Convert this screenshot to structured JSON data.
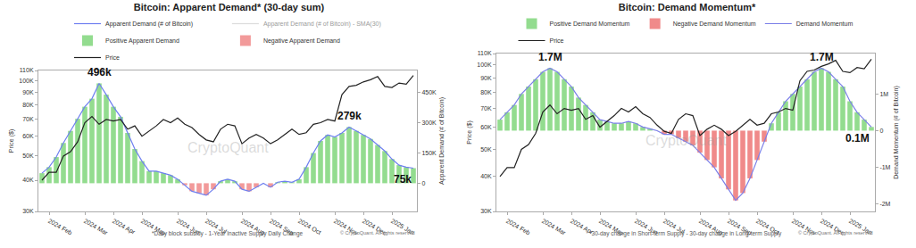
{
  "chart_data": [
    {
      "type": "bar",
      "title": "Bitcoin: Apparent Demand* (30-day sum)",
      "y_label": "Price ($)",
      "y2_label": "Apparent Demand (# of Bitcoin)",
      "footnote": "*Daily block subsidy - 1-Year Inactive Supply Daily Change",
      "credit": "© CryptoQuant. All rights reserved",
      "watermark": "CryptoQuant",
      "legend": "top",
      "grid": false,
      "log": "y",
      "categories": [
        null,
        "2024 Feb",
        null,
        null,
        null,
        null,
        "2024 Mar",
        null,
        null,
        null,
        "2024 Apr",
        null,
        null,
        null,
        "2024 May",
        null,
        null,
        null,
        null,
        "2024 Jun",
        null,
        null,
        null,
        "2024 Jul",
        null,
        null,
        null,
        null,
        "2024 Aug",
        null,
        null,
        null,
        "2024 Sep",
        null,
        null,
        null,
        "2024 Oct",
        null,
        null,
        null,
        null,
        "2024 Nov",
        null,
        null,
        null,
        "2024 Dec",
        null,
        null,
        null,
        "2025 Jan",
        null,
        null,
        null
      ],
      "ylim": [
        30000,
        110000
      ],
      "yticks": [
        {
          "value": 30000,
          "label": "30K"
        },
        {
          "value": 40000,
          "label": "40K"
        },
        {
          "value": 50000,
          "label": "50K"
        },
        {
          "value": 60000,
          "label": "60K"
        },
        {
          "value": 70000,
          "label": "70K"
        },
        {
          "value": 80000,
          "label": "80K"
        },
        {
          "value": 90000,
          "label": "90K"
        },
        {
          "value": 100000,
          "label": "100K"
        },
        {
          "value": 110000,
          "label": "110K"
        }
      ],
      "y2lim": [
        -140000,
        560000
      ],
      "y2ticks": [
        0,
        {
          "value": 150000,
          "label": "150K"
        },
        {
          "value": 300000,
          "label": "300K"
        },
        {
          "value": 450000,
          "label": "450K"
        }
      ],
      "annotations": [
        {
          "text": "496k",
          "x": 8,
          "y": 496000,
          "axis": "y2"
        },
        {
          "text": "279k",
          "x": 43,
          "y": 279000,
          "axis": "y2"
        },
        {
          "text": "75k",
          "x": 52,
          "y": 75000,
          "axis": "y2"
        }
      ],
      "series": [
        {
          "name": "Apparent Demand (# of Bitcoin)",
          "type": "line",
          "color": "#6e7ff0",
          "axis": "y2",
          "values": [
            50000,
            80000,
            130000,
            200000,
            260000,
            320000,
            380000,
            420000,
            496000,
            440000,
            380000,
            330000,
            250000,
            170000,
            110000,
            60000,
            60000,
            50000,
            40000,
            20000,
            -10000,
            -40000,
            -50000,
            -60000,
            -30000,
            10000,
            20000,
            10000,
            -30000,
            -40000,
            -20000,
            0,
            -20000,
            5000,
            10000,
            5000,
            20000,
            80000,
            150000,
            210000,
            240000,
            230000,
            250000,
            279000,
            260000,
            240000,
            220000,
            190000,
            160000,
            120000,
            90000,
            80000,
            75000
          ]
        },
        {
          "name": "Apparent Demand (# of Bitcoin) - SMA(30)",
          "type": "line",
          "color": "#bbbbbb",
          "axis": "y2",
          "line_style": "hidden",
          "values": [
            null,
            null,
            null,
            null,
            null,
            null,
            null,
            null,
            null,
            null,
            null,
            null,
            null,
            null,
            null,
            null,
            null,
            null,
            null,
            null,
            null,
            null,
            null,
            null,
            null,
            null,
            null,
            null,
            null,
            null,
            null,
            null,
            null,
            null,
            null,
            null,
            null,
            null,
            null,
            null,
            null,
            null,
            null,
            null,
            null,
            null,
            null,
            null,
            null,
            null,
            null,
            null,
            null
          ]
        },
        {
          "name": "Positive Apparent Demand",
          "type": "bar",
          "color": "#93dc8f",
          "axis": "y2",
          "values": [
            50000,
            80000,
            130000,
            200000,
            260000,
            320000,
            380000,
            420000,
            496000,
            440000,
            380000,
            330000,
            250000,
            170000,
            110000,
            60000,
            60000,
            50000,
            40000,
            20000,
            null,
            null,
            null,
            null,
            null,
            10000,
            20000,
            10000,
            null,
            null,
            null,
            null,
            null,
            5000,
            10000,
            5000,
            20000,
            80000,
            150000,
            210000,
            240000,
            230000,
            250000,
            279000,
            260000,
            240000,
            220000,
            190000,
            160000,
            120000,
            90000,
            80000,
            75000
          ]
        },
        {
          "name": "Negative Apparent Demand",
          "type": "bar",
          "color": "#f29a9a",
          "axis": "y2",
          "values": [
            null,
            null,
            null,
            null,
            null,
            null,
            null,
            null,
            null,
            null,
            null,
            null,
            null,
            null,
            null,
            null,
            null,
            null,
            null,
            null,
            -10000,
            -40000,
            -50000,
            -60000,
            -30000,
            null,
            null,
            null,
            -30000,
            -40000,
            -20000,
            null,
            -20000,
            null,
            null,
            null,
            null,
            null,
            null,
            null,
            null,
            null,
            null,
            null,
            null,
            null,
            null,
            null,
            null,
            null,
            null,
            null,
            null
          ]
        },
        {
          "name": "Price",
          "type": "line",
          "color": "#222222",
          "values": [
            40000,
            43000,
            43000,
            50000,
            52000,
            57000,
            68000,
            72000,
            67000,
            70000,
            69000,
            70000,
            64000,
            66000,
            60000,
            63000,
            66000,
            70000,
            68000,
            71000,
            67000,
            65000,
            61000,
            58000,
            57000,
            64000,
            67000,
            66000,
            56000,
            59000,
            61000,
            59000,
            56000,
            58000,
            61000,
            64000,
            61000,
            62000,
            67000,
            68000,
            70000,
            69000,
            88000,
            95000,
            96000,
            99000,
            101000,
            104000,
            95000,
            94000,
            98000,
            97000,
            105000
          ]
        }
      ]
    },
    {
      "type": "bar",
      "title": "Bitcoin: Demand Momentum*",
      "y_label": "Price ($)",
      "y2_label": "Demand Momentum (# of Bitcoin)",
      "footnote": "*30-day change in Short-term Supply - 30-day change in Long-term Supply",
      "credit": "© CryptoQuant. All rights reserved",
      "watermark": "CryptoQuant",
      "legend": "top",
      "grid": false,
      "log": "y",
      "categories": [
        null,
        "2024 Feb",
        null,
        null,
        null,
        null,
        "2024 Mar",
        null,
        null,
        null,
        "2024 Apr",
        null,
        null,
        null,
        "2024 May",
        null,
        null,
        null,
        null,
        "2024 Jun",
        null,
        null,
        null,
        "2024 Jul",
        null,
        null,
        null,
        null,
        "2024 Aug",
        null,
        null,
        null,
        "2024 Sep",
        null,
        null,
        null,
        "2024 Oct",
        null,
        null,
        null,
        null,
        "2024 Nov",
        null,
        null,
        null,
        "2024 Dec",
        null,
        null,
        null,
        "2025 Jan",
        null,
        null,
        null
      ],
      "ylim": [
        30000,
        110000
      ],
      "yticks": [
        {
          "value": 30000,
          "label": "30K"
        },
        {
          "value": 40000,
          "label": "40K"
        },
        {
          "value": 50000,
          "label": "50K"
        },
        {
          "value": 60000,
          "label": "60K"
        },
        {
          "value": 70000,
          "label": "70K"
        },
        {
          "value": 80000,
          "label": "80K"
        },
        {
          "value": 90000,
          "label": "90K"
        },
        {
          "value": 100000,
          "label": "100K"
        },
        {
          "value": 110000,
          "label": "110K"
        }
      ],
      "y2lim": [
        -2200000,
        2100000
      ],
      "y2ticks": [
        {
          "value": -2000000,
          "label": "-2M"
        },
        {
          "value": -1000000,
          "label": "-1M"
        },
        0,
        {
          "value": 1000000,
          "label": "1M"
        }
      ],
      "annotations": [
        {
          "text": "1.7M",
          "x": 7,
          "y": 1700000,
          "axis": "y2"
        },
        {
          "text": "1.7M",
          "x": 45,
          "y": 1700000,
          "axis": "y2"
        },
        {
          "text": "0.1M",
          "x": 52,
          "y": 100000,
          "axis": "y2"
        }
      ],
      "series": [
        {
          "name": "Positive Demand Momentum",
          "type": "bar",
          "color": "#93dc8f",
          "axis": "y2",
          "values": [
            300000,
            500000,
            700000,
            1000000,
            1200000,
            1400000,
            1600000,
            1700000,
            1600000,
            1400000,
            1200000,
            900000,
            700000,
            500000,
            300000,
            250000,
            200000,
            200000,
            250000,
            200000,
            100000,
            50000,
            null,
            null,
            null,
            null,
            null,
            null,
            null,
            null,
            null,
            null,
            null,
            null,
            null,
            null,
            null,
            null,
            200000,
            500000,
            800000,
            1000000,
            1200000,
            1400000,
            1600000,
            1700000,
            1600000,
            1400000,
            1200000,
            800000,
            500000,
            300000,
            100000
          ]
        },
        {
          "name": "Negative Demand Momentum",
          "type": "bar",
          "color": "#f08a8a",
          "axis": "y2",
          "values": [
            null,
            null,
            null,
            null,
            null,
            null,
            null,
            null,
            null,
            null,
            null,
            null,
            null,
            null,
            null,
            null,
            null,
            null,
            null,
            null,
            null,
            null,
            null,
            -100000,
            -100000,
            -200000,
            -300000,
            -400000,
            -600000,
            -800000,
            -1000000,
            -1300000,
            -1600000,
            -1900000,
            -1700000,
            -1300000,
            -800000,
            -300000,
            null,
            null,
            null,
            null,
            null,
            null,
            null,
            null,
            null,
            null,
            null,
            null,
            null,
            null,
            null
          ]
        },
        {
          "name": "Demand Momentum",
          "type": "line",
          "color": "#7b7fe8",
          "axis": "y2",
          "values": [
            300000,
            500000,
            700000,
            1000000,
            1200000,
            1400000,
            1600000,
            1700000,
            1600000,
            1400000,
            1200000,
            900000,
            700000,
            500000,
            300000,
            250000,
            200000,
            200000,
            250000,
            200000,
            100000,
            50000,
            0,
            -100000,
            -100000,
            -200000,
            -300000,
            -400000,
            -600000,
            -800000,
            -1000000,
            -1300000,
            -1600000,
            -1900000,
            -1700000,
            -1300000,
            -800000,
            -300000,
            200000,
            500000,
            800000,
            1000000,
            1200000,
            1400000,
            1600000,
            1700000,
            1600000,
            1400000,
            1200000,
            800000,
            500000,
            300000,
            100000
          ]
        },
        {
          "name": "Price",
          "type": "line",
          "color": "#222222",
          "values": [
            40000,
            43000,
            43000,
            50000,
            52000,
            57000,
            68000,
            72000,
            67000,
            70000,
            69000,
            70000,
            64000,
            66000,
            60000,
            63000,
            66000,
            70000,
            68000,
            71000,
            67000,
            65000,
            61000,
            58000,
            57000,
            64000,
            67000,
            66000,
            56000,
            59000,
            61000,
            59000,
            56000,
            58000,
            61000,
            64000,
            61000,
            62000,
            67000,
            68000,
            70000,
            69000,
            88000,
            95000,
            96000,
            99000,
            101000,
            104000,
            95000,
            94000,
            98000,
            97000,
            105000
          ]
        }
      ]
    }
  ]
}
